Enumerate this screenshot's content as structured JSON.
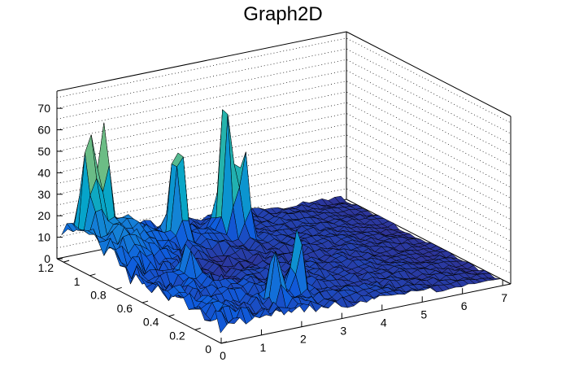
{
  "chart_data": {
    "type": "surface",
    "title": "Graph2D",
    "xlabel": "",
    "ylabel": "",
    "zlabel": "",
    "xlim": [
      0,
      7.2
    ],
    "ylim": [
      0,
      1.25
    ],
    "zlim": [
      0,
      78
    ],
    "x_ticks": [
      "0",
      "1",
      "2",
      "3",
      "4",
      "5",
      "6",
      "7"
    ],
    "y_ticks": [
      "0",
      "0.2",
      "0.4",
      "0.6",
      "0.8",
      "1",
      "1.2"
    ],
    "z_ticks": [
      "0",
      "10",
      "20",
      "30",
      "40",
      "50",
      "60",
      "70"
    ],
    "grid": true,
    "colormap": [
      "#352a87",
      "#0f5cdd",
      "#1481d6",
      "#06a4ca",
      "#2eb7a4",
      "#87bf77",
      "#d1bb59",
      "#fec832",
      "#f9fb0e"
    ],
    "peaks": [
      {
        "x": 0.45,
        "y": 1.15,
        "z": 63
      },
      {
        "x": 0.8,
        "y": 1.15,
        "z": 58
      },
      {
        "x": 2.35,
        "y": 1.05,
        "z": 72
      },
      {
        "x": 3.55,
        "y": 1.05,
        "z": 78
      },
      {
        "x": 3.8,
        "y": 1.0,
        "z": 55
      },
      {
        "x": 2.0,
        "y": 0.2,
        "z": 38
      },
      {
        "x": 2.7,
        "y": 0.25,
        "z": 42
      },
      {
        "x": 1.2,
        "y": 0.6,
        "z": 30
      }
    ]
  }
}
